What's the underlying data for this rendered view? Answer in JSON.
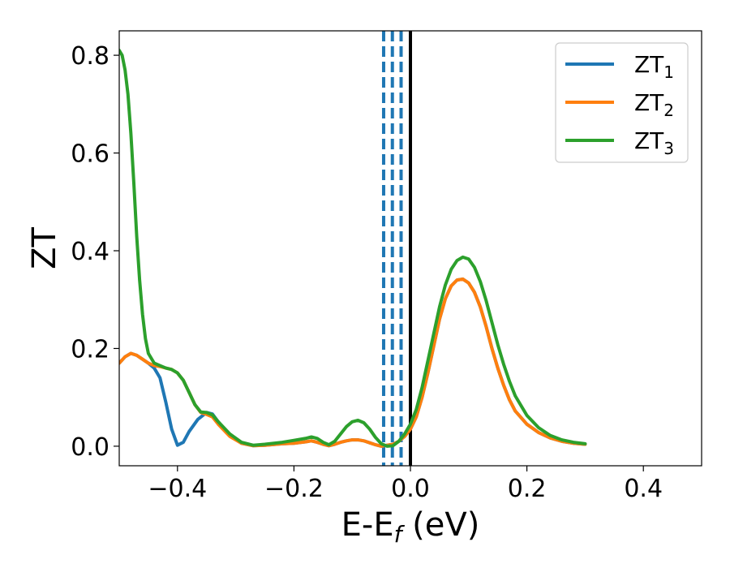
{
  "chart_data": {
    "type": "line",
    "title": "",
    "xlabel": {
      "main": "E-E",
      "sub": "f",
      "rest": " (eV)"
    },
    "ylabel": "ZT",
    "xlim": [
      -0.5,
      0.5
    ],
    "ylim": [
      -0.04,
      0.85
    ],
    "xticks": [
      {
        "value": -0.4,
        "label": "−0.4"
      },
      {
        "value": -0.2,
        "label": "−0.2"
      },
      {
        "value": 0.0,
        "label": "0.0"
      },
      {
        "value": 0.2,
        "label": "0.2"
      },
      {
        "value": 0.4,
        "label": "0.4"
      }
    ],
    "yticks": [
      {
        "value": 0.0,
        "label": "0.0"
      },
      {
        "value": 0.2,
        "label": "0.2"
      },
      {
        "value": 0.4,
        "label": "0.4"
      },
      {
        "value": 0.6,
        "label": "0.6"
      },
      {
        "value": 0.8,
        "label": "0.8"
      }
    ],
    "grid": false,
    "legend_position": "top-right",
    "vlines": [
      {
        "x": -0.046,
        "style": "dashed",
        "color": "#1f77b4"
      },
      {
        "x": -0.031,
        "style": "dashed",
        "color": "#1f77b4"
      },
      {
        "x": -0.016,
        "style": "dashed",
        "color": "#1f77b4"
      },
      {
        "x": 0.0,
        "style": "solid",
        "color": "#000000"
      }
    ],
    "series": [
      {
        "name": "ZT",
        "name_sub": "1",
        "color": "#1f77b4",
        "points": [
          [
            -0.5,
            0.17
          ],
          [
            -0.49,
            0.183
          ],
          [
            -0.48,
            0.19
          ],
          [
            -0.47,
            0.186
          ],
          [
            -0.46,
            0.178
          ],
          [
            -0.45,
            0.17
          ],
          [
            -0.44,
            0.16
          ],
          [
            -0.43,
            0.14
          ],
          [
            -0.42,
            0.09
          ],
          [
            -0.41,
            0.035
          ],
          [
            -0.4,
            0.002
          ],
          [
            -0.39,
            0.008
          ],
          [
            -0.38,
            0.03
          ],
          [
            -0.365,
            0.055
          ],
          [
            -0.35,
            0.069
          ],
          [
            -0.34,
            0.066
          ],
          [
            -0.33,
            0.05
          ],
          [
            -0.31,
            0.022
          ],
          [
            -0.29,
            0.006
          ],
          [
            -0.27,
            0.001
          ],
          [
            -0.25,
            0.002
          ],
          [
            -0.22,
            0.005
          ],
          [
            -0.2,
            0.006
          ],
          [
            -0.18,
            0.009
          ],
          [
            -0.17,
            0.011
          ],
          [
            -0.16,
            0.008
          ],
          [
            -0.15,
            0.004
          ],
          [
            -0.14,
            0.001
          ],
          [
            -0.13,
            0.004
          ],
          [
            -0.12,
            0.008
          ],
          [
            -0.11,
            0.011
          ],
          [
            -0.1,
            0.013
          ],
          [
            -0.09,
            0.013
          ],
          [
            -0.08,
            0.011
          ],
          [
            -0.07,
            0.007
          ],
          [
            -0.06,
            0.003
          ],
          [
            -0.05,
            0.0
          ],
          [
            -0.04,
            0.002
          ],
          [
            -0.03,
            0.004
          ],
          [
            -0.02,
            0.01
          ],
          [
            -0.01,
            0.02
          ],
          [
            0.0,
            0.035
          ],
          [
            0.01,
            0.06
          ],
          [
            0.02,
            0.1
          ],
          [
            0.03,
            0.15
          ],
          [
            0.04,
            0.205
          ],
          [
            0.05,
            0.26
          ],
          [
            0.06,
            0.302
          ],
          [
            0.07,
            0.328
          ],
          [
            0.08,
            0.34
          ],
          [
            0.09,
            0.342
          ],
          [
            0.1,
            0.334
          ],
          [
            0.11,
            0.315
          ],
          [
            0.12,
            0.285
          ],
          [
            0.13,
            0.245
          ],
          [
            0.14,
            0.2
          ],
          [
            0.15,
            0.16
          ],
          [
            0.16,
            0.125
          ],
          [
            0.17,
            0.095
          ],
          [
            0.18,
            0.072
          ],
          [
            0.2,
            0.045
          ],
          [
            0.22,
            0.028
          ],
          [
            0.24,
            0.017
          ],
          [
            0.26,
            0.01
          ],
          [
            0.28,
            0.006
          ],
          [
            0.3,
            0.004
          ]
        ]
      },
      {
        "name": "ZT",
        "name_sub": "2",
        "color": "#ff7f0e",
        "points": [
          [
            -0.5,
            0.17
          ],
          [
            -0.49,
            0.183
          ],
          [
            -0.48,
            0.19
          ],
          [
            -0.47,
            0.186
          ],
          [
            -0.46,
            0.178
          ],
          [
            -0.45,
            0.17
          ],
          [
            -0.44,
            0.165
          ],
          [
            -0.43,
            0.163
          ],
          [
            -0.42,
            0.16
          ],
          [
            -0.41,
            0.157
          ],
          [
            -0.4,
            0.15
          ],
          [
            -0.39,
            0.135
          ],
          [
            -0.38,
            0.11
          ],
          [
            -0.37,
            0.085
          ],
          [
            -0.36,
            0.069
          ],
          [
            -0.35,
            0.065
          ],
          [
            -0.34,
            0.06
          ],
          [
            -0.33,
            0.045
          ],
          [
            -0.31,
            0.02
          ],
          [
            -0.29,
            0.006
          ],
          [
            -0.27,
            0.001
          ],
          [
            -0.25,
            0.002
          ],
          [
            -0.22,
            0.005
          ],
          [
            -0.2,
            0.006
          ],
          [
            -0.18,
            0.009
          ],
          [
            -0.17,
            0.011
          ],
          [
            -0.16,
            0.008
          ],
          [
            -0.15,
            0.004
          ],
          [
            -0.14,
            0.001
          ],
          [
            -0.13,
            0.004
          ],
          [
            -0.12,
            0.008
          ],
          [
            -0.11,
            0.011
          ],
          [
            -0.1,
            0.013
          ],
          [
            -0.09,
            0.013
          ],
          [
            -0.08,
            0.011
          ],
          [
            -0.07,
            0.007
          ],
          [
            -0.06,
            0.003
          ],
          [
            -0.05,
            0.0
          ],
          [
            -0.04,
            0.002
          ],
          [
            -0.03,
            0.004
          ],
          [
            -0.02,
            0.01
          ],
          [
            -0.01,
            0.02
          ],
          [
            0.0,
            0.035
          ],
          [
            0.01,
            0.06
          ],
          [
            0.02,
            0.1
          ],
          [
            0.03,
            0.15
          ],
          [
            0.04,
            0.205
          ],
          [
            0.05,
            0.26
          ],
          [
            0.06,
            0.302
          ],
          [
            0.07,
            0.328
          ],
          [
            0.08,
            0.34
          ],
          [
            0.09,
            0.342
          ],
          [
            0.1,
            0.334
          ],
          [
            0.11,
            0.315
          ],
          [
            0.12,
            0.285
          ],
          [
            0.13,
            0.245
          ],
          [
            0.14,
            0.2
          ],
          [
            0.15,
            0.16
          ],
          [
            0.16,
            0.125
          ],
          [
            0.17,
            0.095
          ],
          [
            0.18,
            0.072
          ],
          [
            0.2,
            0.045
          ],
          [
            0.22,
            0.028
          ],
          [
            0.24,
            0.017
          ],
          [
            0.26,
            0.01
          ],
          [
            0.28,
            0.006
          ],
          [
            0.3,
            0.004
          ]
        ]
      },
      {
        "name": "ZT",
        "name_sub": "3",
        "color": "#2ca02c",
        "points": [
          [
            -0.5,
            0.81
          ],
          [
            -0.495,
            0.8
          ],
          [
            -0.49,
            0.77
          ],
          [
            -0.485,
            0.72
          ],
          [
            -0.48,
            0.64
          ],
          [
            -0.475,
            0.54
          ],
          [
            -0.47,
            0.43
          ],
          [
            -0.465,
            0.34
          ],
          [
            -0.46,
            0.27
          ],
          [
            -0.455,
            0.22
          ],
          [
            -0.45,
            0.19
          ],
          [
            -0.44,
            0.17
          ],
          [
            -0.43,
            0.165
          ],
          [
            -0.42,
            0.16
          ],
          [
            -0.41,
            0.157
          ],
          [
            -0.4,
            0.15
          ],
          [
            -0.39,
            0.135
          ],
          [
            -0.38,
            0.11
          ],
          [
            -0.37,
            0.085
          ],
          [
            -0.36,
            0.07
          ],
          [
            -0.35,
            0.069
          ],
          [
            -0.34,
            0.064
          ],
          [
            -0.33,
            0.05
          ],
          [
            -0.31,
            0.025
          ],
          [
            -0.29,
            0.008
          ],
          [
            -0.27,
            0.002
          ],
          [
            -0.25,
            0.004
          ],
          [
            -0.22,
            0.008
          ],
          [
            -0.2,
            0.012
          ],
          [
            -0.18,
            0.016
          ],
          [
            -0.17,
            0.019
          ],
          [
            -0.16,
            0.016
          ],
          [
            -0.15,
            0.008
          ],
          [
            -0.14,
            0.003
          ],
          [
            -0.13,
            0.01
          ],
          [
            -0.12,
            0.025
          ],
          [
            -0.11,
            0.04
          ],
          [
            -0.1,
            0.05
          ],
          [
            -0.09,
            0.053
          ],
          [
            -0.08,
            0.048
          ],
          [
            -0.07,
            0.035
          ],
          [
            -0.06,
            0.018
          ],
          [
            -0.05,
            0.005
          ],
          [
            -0.04,
            0.0
          ],
          [
            -0.03,
            0.001
          ],
          [
            -0.02,
            0.01
          ],
          [
            -0.01,
            0.025
          ],
          [
            0.0,
            0.045
          ],
          [
            0.01,
            0.075
          ],
          [
            0.02,
            0.12
          ],
          [
            0.03,
            0.175
          ],
          [
            0.04,
            0.23
          ],
          [
            0.05,
            0.285
          ],
          [
            0.06,
            0.33
          ],
          [
            0.07,
            0.362
          ],
          [
            0.08,
            0.38
          ],
          [
            0.09,
            0.387
          ],
          [
            0.1,
            0.383
          ],
          [
            0.11,
            0.366
          ],
          [
            0.12,
            0.337
          ],
          [
            0.13,
            0.298
          ],
          [
            0.14,
            0.253
          ],
          [
            0.15,
            0.208
          ],
          [
            0.16,
            0.168
          ],
          [
            0.17,
            0.133
          ],
          [
            0.18,
            0.103
          ],
          [
            0.2,
            0.063
          ],
          [
            0.22,
            0.038
          ],
          [
            0.24,
            0.022
          ],
          [
            0.26,
            0.013
          ],
          [
            0.28,
            0.008
          ],
          [
            0.3,
            0.005
          ]
        ]
      }
    ]
  }
}
